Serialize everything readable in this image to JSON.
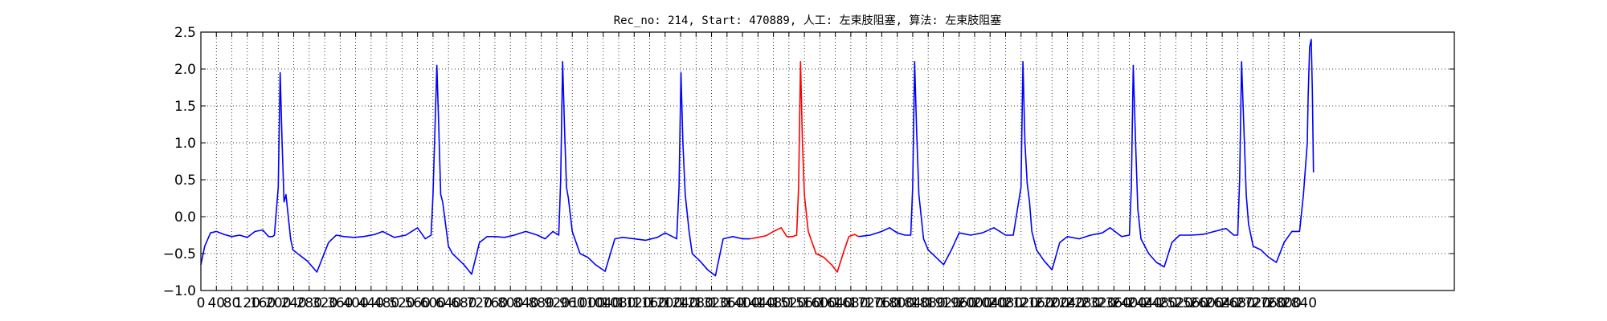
{
  "chart_data": {
    "type": "line",
    "title": "Rec_no: 214, Start: 470889, 人工: 左束肢阻塞, 算法: 左束肢阻塞",
    "xlabel": "",
    "ylabel": "",
    "xlim": [
      0,
      3240
    ],
    "ylim": [
      -1.0,
      2.5
    ],
    "grid": true,
    "legend": "none",
    "x_ticks": [
      0,
      40,
      80,
      120,
      160,
      200,
      240,
      280,
      320,
      360,
      400,
      440,
      480,
      520,
      560,
      600,
      640,
      680,
      720,
      760,
      800,
      840,
      880,
      920,
      960,
      1000,
      1040,
      1080,
      1120,
      1160,
      1200,
      1240,
      1280,
      1320,
      1360,
      1400,
      1440,
      1480,
      1520,
      1560,
      1600,
      1640,
      1680,
      1720,
      1760,
      1800,
      1840,
      1880,
      1920,
      1960,
      2000,
      2040,
      2080,
      2120,
      2160,
      2200,
      2240,
      2280,
      2320,
      2360,
      2400,
      2440,
      2480,
      2520,
      2560,
      2600,
      2640,
      2680,
      2720,
      2760,
      2800,
      2840
    ],
    "x_tick_labels": [
      "0",
      "40",
      "80",
      "120",
      "160",
      "200",
      "240",
      "280",
      "320",
      "360",
      "400",
      "440",
      "480",
      "520",
      "560",
      "600",
      "640",
      "680",
      "720",
      "760",
      "800",
      "840",
      "880",
      "920",
      "960",
      "1000",
      "1040",
      "1080",
      "1120",
      "1160",
      "1200",
      "1240",
      "1280",
      "1320",
      "1360",
      "1400",
      "1440",
      "1480",
      "1520",
      "1560",
      "1600",
      "1640",
      "1680",
      "1720",
      "1760",
      "1800",
      "1840",
      "1880",
      "1920",
      "1960",
      "2000",
      "2040",
      "2080",
      "2120",
      "2160",
      "2200",
      "2240",
      "2280",
      "2320",
      "2360",
      "2400",
      "2440",
      "2480",
      "2520",
      "2560",
      "2600",
      "2640",
      "2680",
      "2720",
      "2760",
      "2800",
      "2840"
    ],
    "y_ticks": [
      -1.0,
      -0.5,
      0.0,
      0.5,
      1.0,
      1.5,
      2.0,
      2.5
    ],
    "y_tick_labels": [
      "−1.0",
      "−0.5",
      "0.0",
      "0.5",
      "1.0",
      "1.5",
      "2.0",
      "2.5"
    ],
    "series": [
      {
        "color": "#0000ff",
        "x": [
          0,
          10,
          25,
          40,
          60,
          80,
          100,
          120,
          140,
          160,
          175,
          185,
          190,
          200,
          205,
          210,
          215,
          220,
          226,
          232,
          238,
          250,
          275,
          300,
          330,
          350,
          370,
          395,
          420,
          450,
          470,
          500,
          530,
          560,
          580,
          595,
          600,
          610,
          615,
          620,
          625,
          630,
          635,
          640,
          650,
          660,
          680,
          700,
          720,
          740,
          760,
          785,
          810,
          840,
          870,
          890,
          910,
          925,
          930,
          935,
          940,
          945,
          950,
          960,
          980,
          1000,
          1020,
          1045,
          1070,
          1090,
          1120,
          1150,
          1180,
          1200,
          1230,
          1236,
          1241,
          1246,
          1252,
          1258,
          1262,
          1270,
          1290,
          1310,
          1330,
          1350,
          1375,
          1400,
          1420
        ],
        "y": [
          -0.65,
          -0.4,
          -0.22,
          -0.2,
          -0.24,
          -0.27,
          -0.25,
          -0.28,
          -0.2,
          -0.18,
          -0.27,
          -0.27,
          -0.25,
          0.4,
          1.95,
          1.0,
          0.2,
          0.3,
          0.0,
          -0.3,
          -0.45,
          -0.5,
          -0.6,
          -0.75,
          -0.35,
          -0.25,
          -0.27,
          -0.28,
          -0.27,
          -0.24,
          -0.2,
          -0.28,
          -0.25,
          -0.15,
          -0.3,
          -0.25,
          0.3,
          2.05,
          1.2,
          0.3,
          0.2,
          0.0,
          -0.2,
          -0.4,
          -0.5,
          -0.55,
          -0.65,
          -0.78,
          -0.35,
          -0.27,
          -0.27,
          -0.28,
          -0.25,
          -0.2,
          -0.25,
          -0.3,
          -0.2,
          -0.25,
          0.5,
          2.1,
          1.2,
          0.4,
          0.25,
          -0.2,
          -0.5,
          -0.55,
          -0.65,
          -0.74,
          -0.3,
          -0.28,
          -0.3,
          -0.32,
          -0.28,
          -0.22,
          -0.3,
          0.4,
          1.95,
          1.0,
          0.3,
          0.0,
          -0.2,
          -0.5,
          -0.6,
          -0.72,
          -0.8,
          -0.3,
          -0.27,
          -0.3,
          -0.3
        ]
      },
      {
        "color": "#ff0000",
        "x": [
          1420,
          1440,
          1460,
          1480,
          1500,
          1515,
          1530,
          1540,
          1545,
          1550,
          1555,
          1560,
          1570,
          1590,
          1610,
          1630,
          1645,
          1660,
          1675,
          1690,
          1700
        ],
        "y": [
          -0.3,
          -0.28,
          -0.26,
          -0.2,
          -0.15,
          -0.27,
          -0.27,
          -0.25,
          0.4,
          2.1,
          1.0,
          0.3,
          -0.2,
          -0.5,
          -0.55,
          -0.65,
          -0.75,
          -0.5,
          -0.27,
          -0.24,
          -0.27
        ]
      },
      {
        "color": "#0000ff",
        "x": [
          1700,
          1730,
          1760,
          1780,
          1800,
          1820,
          1835,
          1840,
          1845,
          1850,
          1856,
          1862,
          1868,
          1880,
          1900,
          1920,
          1940,
          1960,
          1990,
          2020,
          2050,
          2080,
          2100,
          2120,
          2125,
          2130,
          2136,
          2142,
          2148,
          2160,
          2180,
          2200,
          2220,
          2240,
          2270,
          2300,
          2330,
          2350,
          2380,
          2400,
          2405,
          2410,
          2416,
          2422,
          2430,
          2450,
          2470,
          2490,
          2510,
          2530,
          2560,
          2590,
          2620,
          2650,
          2670,
          2680,
          2685,
          2690,
          2696,
          2702,
          2708,
          2720,
          2740,
          2760,
          2780,
          2800,
          2820,
          2830,
          2840,
          2850,
          2860,
          2862,
          2866,
          2870,
          2873,
          2876
        ],
        "y": [
          -0.27,
          -0.25,
          -0.2,
          -0.15,
          -0.22,
          -0.25,
          -0.25,
          0.4,
          2.1,
          1.2,
          0.3,
          0.0,
          -0.3,
          -0.45,
          -0.55,
          -0.65,
          -0.45,
          -0.22,
          -0.25,
          -0.22,
          -0.15,
          -0.25,
          -0.25,
          0.4,
          2.1,
          1.0,
          0.45,
          0.2,
          -0.2,
          -0.45,
          -0.6,
          -0.72,
          -0.35,
          -0.27,
          -0.3,
          -0.25,
          -0.22,
          -0.15,
          -0.27,
          -0.25,
          0.4,
          2.05,
          1.0,
          0.1,
          -0.3,
          -0.5,
          -0.62,
          -0.68,
          -0.35,
          -0.25,
          -0.25,
          -0.24,
          -0.2,
          -0.16,
          -0.25,
          -0.25,
          0.5,
          2.1,
          1.2,
          0.3,
          -0.1,
          -0.4,
          -0.45,
          -0.55,
          -0.62,
          -0.35,
          -0.2,
          -0.2,
          -0.2,
          0.3,
          1.0,
          1.6,
          2.3,
          2.4,
          1.7,
          0.6
        ]
      }
    ]
  }
}
